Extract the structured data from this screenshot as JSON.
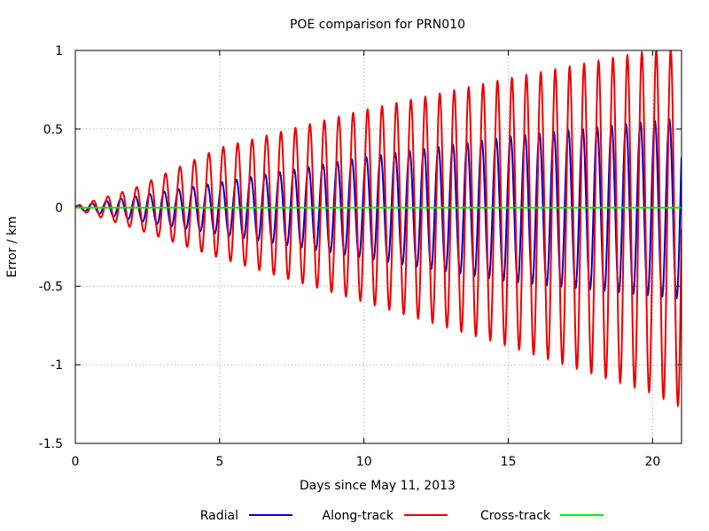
{
  "chart_data": {
    "type": "line",
    "title": "POE comparison for PRN010",
    "xlabel": "Days since May 11, 2013",
    "ylabel": "Error / km",
    "xlim": [
      0,
      21
    ],
    "ylim": [
      -1.5,
      1
    ],
    "x_ticks": [
      0,
      5,
      10,
      15,
      20
    ],
    "y_ticks": [
      -1.5,
      -1,
      -0.5,
      0,
      0.5,
      1
    ],
    "x_tick_labels": [
      "0",
      "5",
      "10",
      "15",
      "20"
    ],
    "y_tick_labels": [
      "-1.5",
      "-1",
      "-0.5",
      "0",
      "0.5",
      "1"
    ],
    "grid": true,
    "legend_position": "bottom",
    "series": [
      {
        "name": "Radial",
        "color": "#0000cc",
        "kind": "oscillation",
        "period_days": 0.5,
        "envelope_x": [
          0,
          2,
          5,
          10,
          15,
          20,
          21
        ],
        "envelope_max": [
          0.01,
          0.07,
          0.16,
          0.32,
          0.45,
          0.55,
          0.57
        ],
        "envelope_min": [
          -0.01,
          -0.08,
          -0.17,
          -0.32,
          -0.47,
          -0.56,
          -0.58
        ]
      },
      {
        "name": "Along-track",
        "color": "#ee0000",
        "kind": "oscillation",
        "period_days": 0.5,
        "envelope_x": [
          0,
          2,
          5,
          10,
          15,
          20,
          21
        ],
        "envelope_max": [
          0.01,
          0.12,
          0.38,
          0.62,
          0.82,
          1.0,
          1.0
        ],
        "envelope_min": [
          -0.01,
          -0.13,
          -0.32,
          -0.6,
          -0.88,
          -1.18,
          -1.27
        ]
      },
      {
        "name": "Cross-track",
        "color": "#00ee00",
        "kind": "constant",
        "x": [
          0,
          21
        ],
        "y": [
          0,
          0
        ]
      }
    ]
  }
}
